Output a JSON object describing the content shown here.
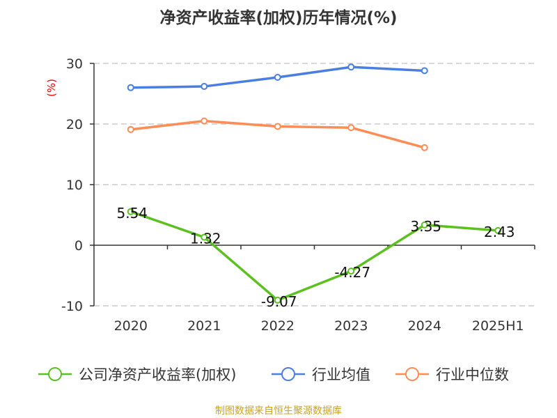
{
  "chart_data": {
    "type": "line",
    "title": "净资产收益率(加权)历年情况(%)",
    "ylabel": "(%)",
    "categories": [
      "2020",
      "2021",
      "2022",
      "2023",
      "2024",
      "2025H1"
    ],
    "ylim": [
      -10,
      30
    ],
    "yticks": [
      "-10",
      "0",
      "10",
      "20",
      "30"
    ],
    "grid": true,
    "legend_position": "bottom",
    "series": [
      {
        "name": "公司净资产收益率(加权)",
        "color": "#5cc021",
        "values": [
          5.54,
          1.32,
          -9.07,
          -4.27,
          3.35,
          2.43
        ],
        "labels": [
          "5.54",
          "1.32",
          "-9.07",
          "-4.27",
          "3.35",
          "2.43"
        ]
      },
      {
        "name": "行业均值",
        "color": "#4a7ee0",
        "values": [
          26.0,
          26.2,
          27.7,
          29.4,
          28.8,
          null
        ]
      },
      {
        "name": "行业中位数",
        "color": "#ff8c55",
        "values": [
          19.1,
          20.5,
          19.6,
          19.4,
          16.1,
          null
        ]
      }
    ]
  },
  "source": "制图数据来自恒生聚源数据库"
}
